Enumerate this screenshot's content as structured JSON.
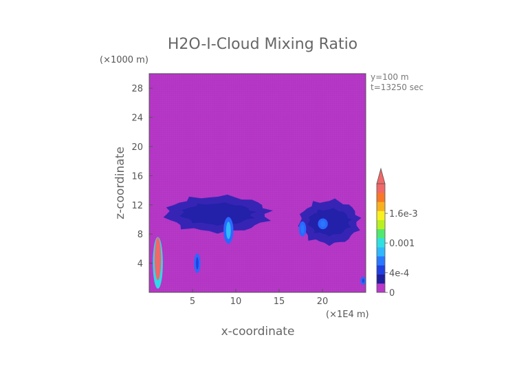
{
  "chart_data": {
    "type": "heatmap",
    "title": "H2O-I-Cloud Mixing Ratio",
    "xlabel": "x-coordinate",
    "ylabel": "z-coordinate",
    "x_units": "(×1E4 m)",
    "y_units": "(×1000 m)",
    "annotations": [
      "y=100 m",
      "t=13250 sec"
    ],
    "xlim": [
      0,
      25
    ],
    "ylim": [
      0,
      30
    ],
    "x_ticks": [
      5,
      10,
      15,
      20
    ],
    "y_ticks": [
      4,
      8,
      12,
      16,
      20,
      24,
      28
    ],
    "colorbar": {
      "min": 0,
      "max": 0.0022,
      "labels": [
        {
          "value": 0,
          "text": "0"
        },
        {
          "value": 0.0004,
          "text": "4e-4"
        },
        {
          "value": 0.001,
          "text": "0.001"
        },
        {
          "value": 0.0016,
          "text": "1.6e-3"
        }
      ],
      "colors": [
        "#b838c8",
        "#2020a8",
        "#2040e0",
        "#2a78ff",
        "#30b8ff",
        "#30e0e0",
        "#50e870",
        "#b8f020",
        "#f8f020",
        "#f8b020",
        "#f87828",
        "#f06868"
      ],
      "background_color": "#b838c8"
    },
    "features": [
      {
        "name": "anvil-cloud-left",
        "x_range": [
          1.3,
          14.5
        ],
        "z_range": [
          8.0,
          13.5
        ],
        "level": 0.00025
      },
      {
        "name": "anvil-cloud-right",
        "x_range": [
          17.0,
          24.6
        ],
        "z_range": [
          6.3,
          13.0
        ],
        "level": 0.00025
      },
      {
        "name": "core-x9",
        "x_range": [
          8.7,
          9.6
        ],
        "z_range": [
          6.8,
          10.2
        ],
        "level": 0.0007
      },
      {
        "name": "core-x18",
        "x_range": [
          17.4,
          18.0
        ],
        "z_range": [
          7.8,
          9.6
        ],
        "level": 0.0005
      },
      {
        "name": "core-x20",
        "x_range": [
          19.6,
          20.5
        ],
        "z_range": [
          8.8,
          10.0
        ],
        "level": 0.0006
      },
      {
        "name": "column-x1",
        "x_range": [
          0.5,
          1.5
        ],
        "z_range": [
          0.6,
          7.5
        ],
        "level": 0.0022
      },
      {
        "name": "column-x5.5",
        "x_range": [
          5.3,
          5.8
        ],
        "z_range": [
          2.8,
          5.2
        ],
        "level": 0.0003
      },
      {
        "name": "spot-x24.7",
        "x_range": [
          24.5,
          24.9
        ],
        "z_range": [
          1.2,
          2.0
        ],
        "level": 0.0003
      }
    ]
  }
}
